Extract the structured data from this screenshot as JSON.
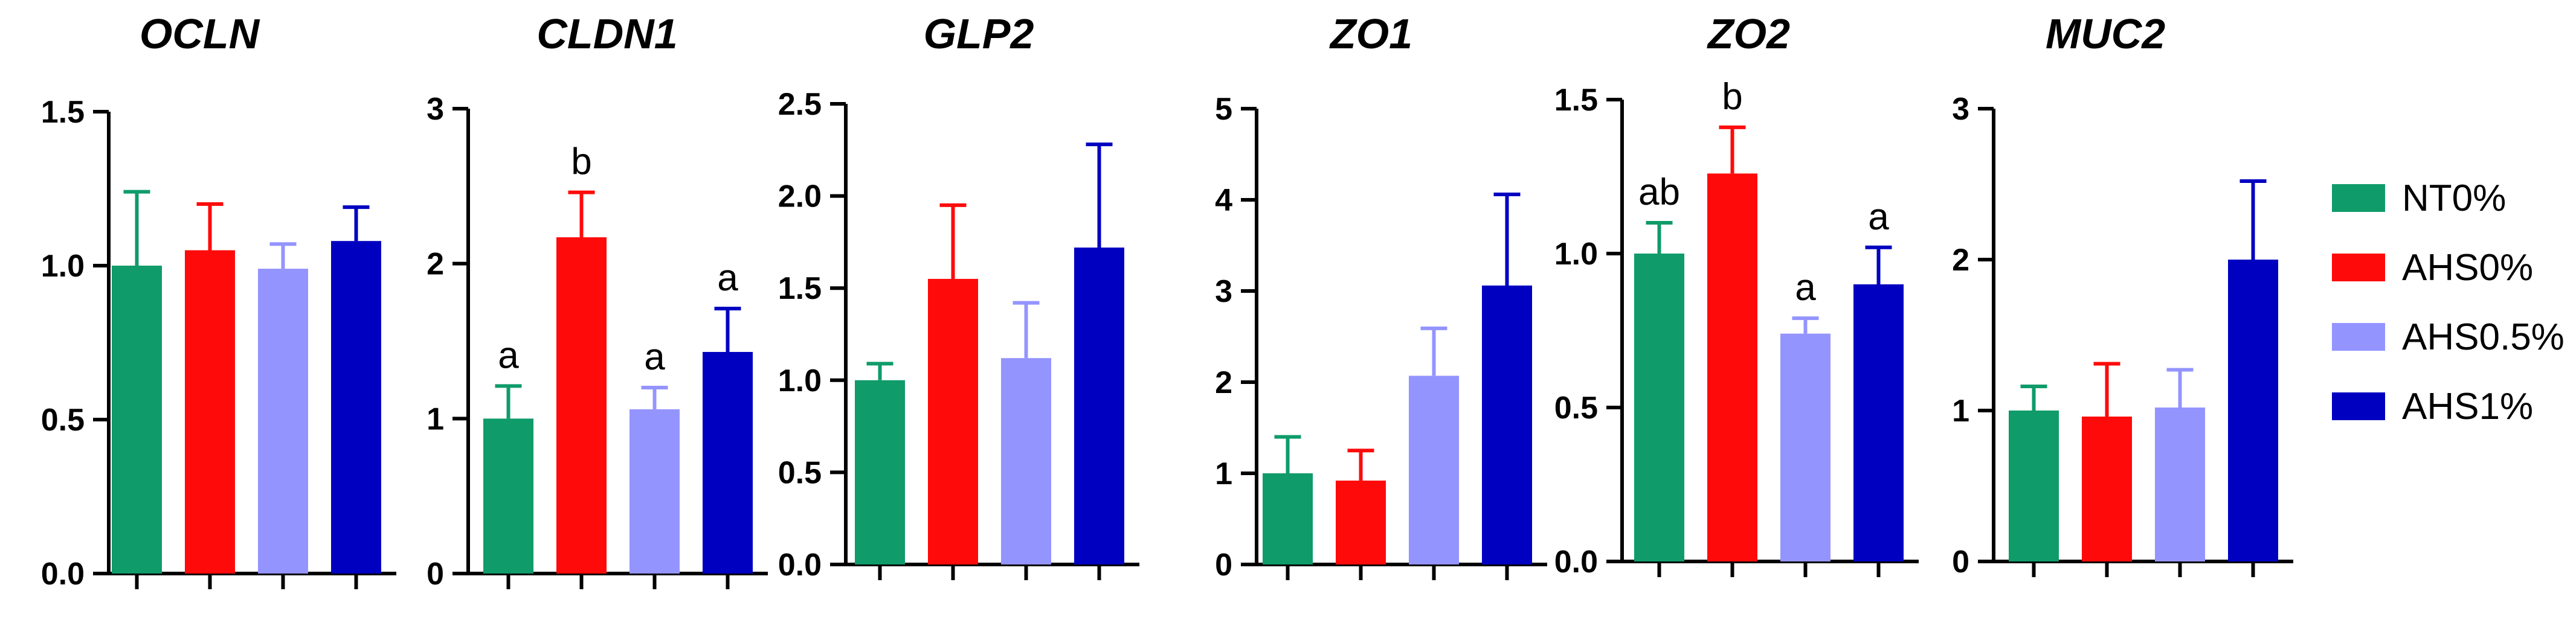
{
  "chart_data": {
    "type": "bar",
    "legend": [
      {
        "label": "NT0%",
        "color": "#0F9B6A"
      },
      {
        "label": "AHS0%",
        "color": "#FF0A0A"
      },
      {
        "label": "AHS0.5%",
        "color": "#9494FF"
      },
      {
        "label": "AHS1%",
        "color": "#0000C0"
      }
    ],
    "legend_position": "right",
    "panels": [
      {
        "title": "OCLN",
        "ylim": [
          0,
          1.5
        ],
        "ticks": [
          "0.0",
          "0.5",
          "1.0",
          "1.5"
        ],
        "tick_values": [
          0,
          0.5,
          1.0,
          1.5
        ],
        "values": [
          1.0,
          1.05,
          0.99,
          1.08
        ],
        "errors": [
          0.24,
          0.15,
          0.08,
          0.11
        ],
        "labels": [
          "",
          "",
          "",
          ""
        ]
      },
      {
        "title": "CLDN1",
        "ylim": [
          0,
          3
        ],
        "ticks": [
          "0",
          "1",
          "2",
          "3"
        ],
        "tick_values": [
          0,
          1,
          2,
          3
        ],
        "values": [
          1.0,
          2.17,
          1.06,
          1.43
        ],
        "errors": [
          0.21,
          0.29,
          0.14,
          0.28
        ],
        "labels": [
          "a",
          "b",
          "a",
          "a"
        ]
      },
      {
        "title": "GLP2",
        "ylim": [
          0,
          2.5
        ],
        "ticks": [
          "0.0",
          "0.5",
          "1.0",
          "1.5",
          "2.0",
          "2.5"
        ],
        "tick_values": [
          0,
          0.5,
          1.0,
          1.5,
          2.0,
          2.5
        ],
        "values": [
          1.0,
          1.55,
          1.12,
          1.72
        ],
        "errors": [
          0.09,
          0.4,
          0.3,
          0.56
        ],
        "labels": [
          "",
          "",
          "",
          ""
        ]
      },
      {
        "title": "ZO1",
        "ylim": [
          0,
          5
        ],
        "ticks": [
          "0",
          "1",
          "2",
          "3",
          "4",
          "5"
        ],
        "tick_values": [
          0,
          1,
          2,
          3,
          4,
          5
        ],
        "values": [
          1.0,
          0.92,
          2.07,
          3.06
        ],
        "errors": [
          0.4,
          0.33,
          0.52,
          1.0
        ],
        "labels": [
          "",
          "",
          "",
          ""
        ]
      },
      {
        "title": "ZO2",
        "ylim": [
          0,
          1.5
        ],
        "ticks": [
          "0.0",
          "0.5",
          "1.0",
          "1.5"
        ],
        "tick_values": [
          0,
          0.5,
          1.0,
          1.5
        ],
        "values": [
          1.0,
          1.26,
          0.74,
          0.9
        ],
        "errors": [
          0.1,
          0.15,
          0.05,
          0.12
        ],
        "labels": [
          "ab",
          "b",
          "a",
          "a"
        ]
      },
      {
        "title": "MUC2",
        "ylim": [
          0,
          3
        ],
        "ticks": [
          "0",
          "1",
          "2",
          "3"
        ],
        "tick_values": [
          0,
          1,
          2,
          3
        ],
        "values": [
          1.0,
          0.96,
          1.02,
          2.0
        ],
        "errors": [
          0.16,
          0.35,
          0.25,
          0.52
        ],
        "labels": [
          "",
          "",
          "",
          ""
        ]
      }
    ]
  }
}
